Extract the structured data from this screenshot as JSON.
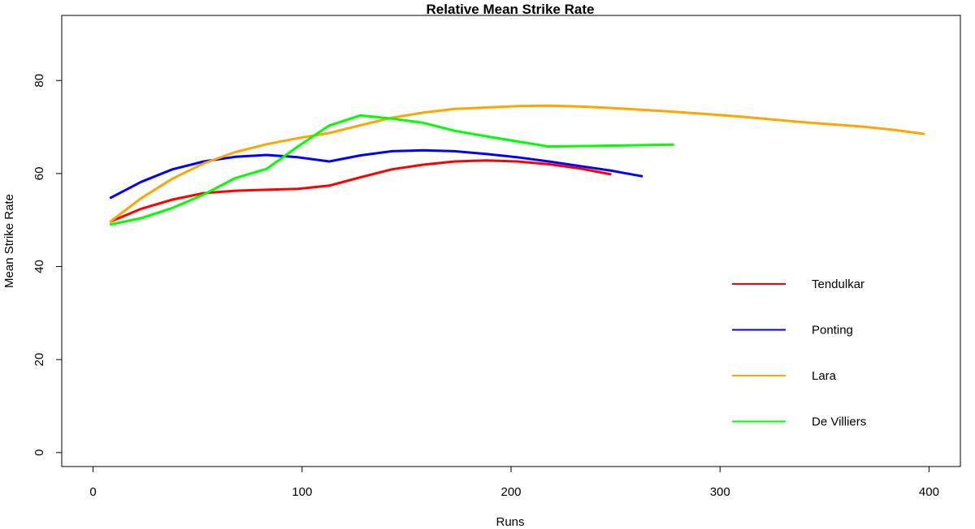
{
  "chart_data": {
    "type": "line",
    "title": "Relative Mean Strike Rate",
    "xlabel": "Runs",
    "ylabel": "Mean Strike Rate",
    "xlim": [
      -15,
      415
    ],
    "ylim": [
      -3,
      94
    ],
    "xticks": [
      0,
      100,
      200,
      300,
      400
    ],
    "yticks": [
      0,
      20,
      40,
      60,
      80
    ],
    "grid": false,
    "legend_position": "bottom-right",
    "series": [
      {
        "name": "Tendulkar",
        "color": "#ff0000",
        "x": [
          8,
          23,
          38,
          53,
          68,
          83,
          98,
          113,
          128,
          143,
          158,
          173,
          188,
          203,
          218,
          233,
          248
        ],
        "y": [
          49.6,
          52.4,
          54.4,
          55.8,
          56.3,
          56.5,
          56.7,
          57.4,
          59.2,
          60.9,
          61.9,
          62.6,
          62.8,
          62.6,
          62.0,
          61.1,
          59.8
        ]
      },
      {
        "name": "Ponting",
        "color": "#0000ff",
        "x": [
          8,
          23,
          38,
          53,
          68,
          83,
          98,
          113,
          128,
          143,
          158,
          173,
          188,
          203,
          218,
          233,
          248,
          263
        ],
        "y": [
          54.7,
          58.2,
          60.9,
          62.6,
          63.6,
          64.0,
          63.5,
          62.6,
          63.9,
          64.8,
          65.0,
          64.8,
          64.2,
          63.5,
          62.6,
          61.6,
          60.6,
          59.4
        ]
      },
      {
        "name": "Lara",
        "color": "#ffa500",
        "x": [
          8,
          23,
          38,
          53,
          68,
          83,
          98,
          113,
          128,
          143,
          158,
          173,
          188,
          203,
          218,
          233,
          248,
          263,
          278,
          293,
          308,
          323,
          338,
          353,
          368,
          383,
          398
        ],
        "y": [
          49.6,
          54.7,
          58.9,
          62.2,
          64.6,
          66.3,
          67.6,
          68.7,
          70.4,
          72.0,
          73.1,
          73.9,
          74.2,
          74.5,
          74.6,
          74.4,
          74.1,
          73.7,
          73.3,
          72.8,
          72.3,
          71.7,
          71.1,
          70.6,
          70.1,
          69.4,
          68.5
        ]
      },
      {
        "name": "De Villiers",
        "color": "#00ff00",
        "x": [
          8,
          23,
          38,
          53,
          68,
          83,
          98,
          113,
          128,
          143,
          158,
          173,
          188,
          203,
          218,
          233,
          248,
          263,
          278
        ],
        "y": [
          49.0,
          50.4,
          52.6,
          55.5,
          59.0,
          61.0,
          65.8,
          70.3,
          72.5,
          71.8,
          70.9,
          69.2,
          68.0,
          66.9,
          65.8,
          65.9,
          66.0,
          66.1,
          66.2
        ]
      }
    ]
  }
}
